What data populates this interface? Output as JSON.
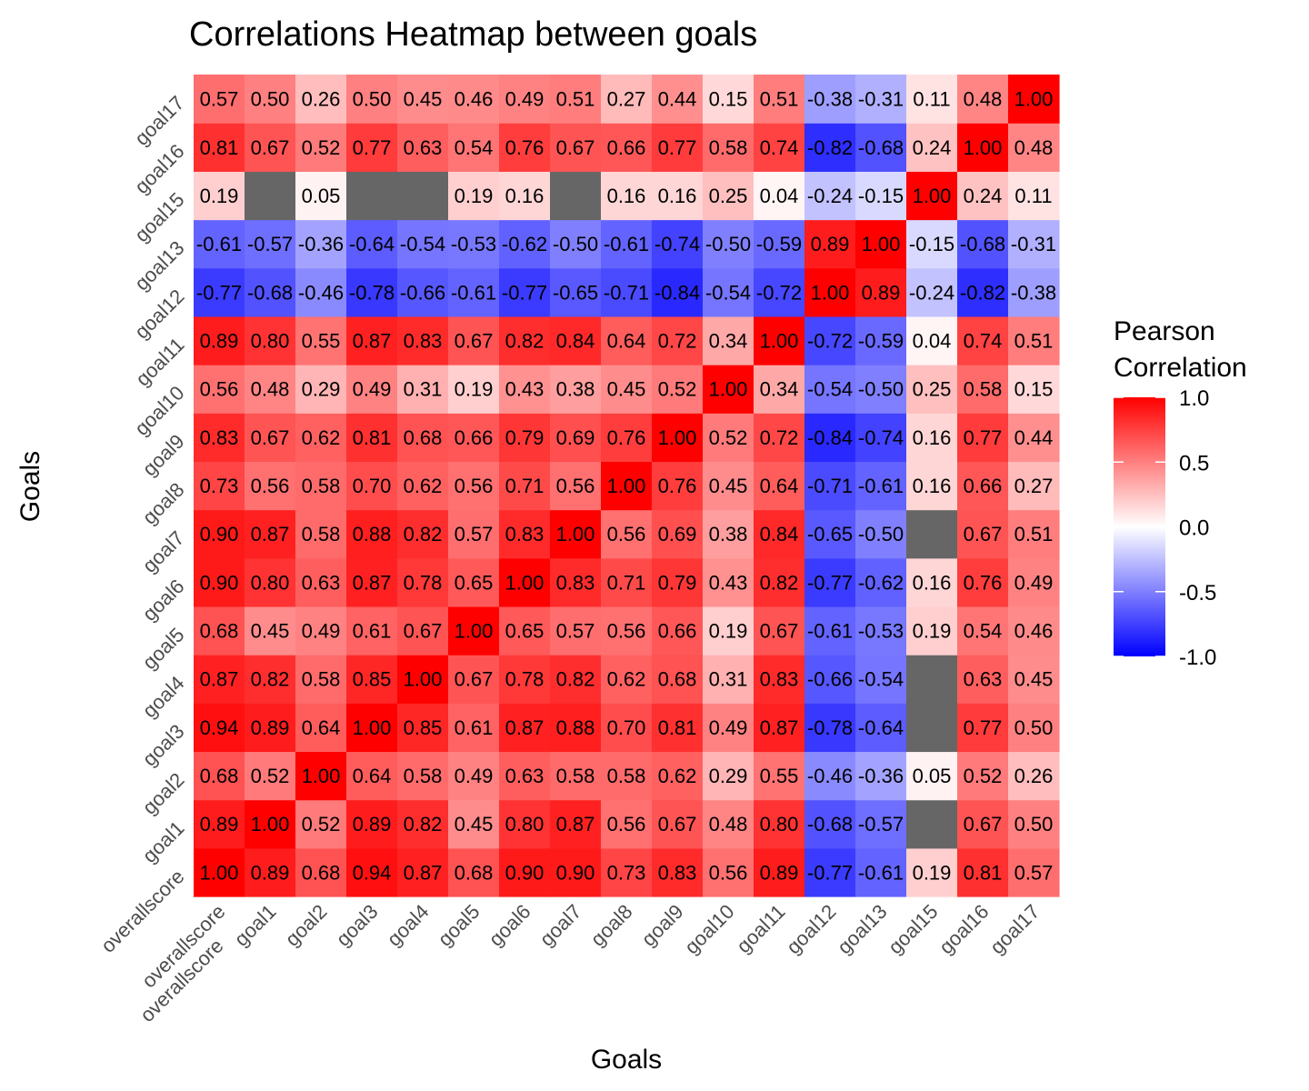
{
  "chart_data": {
    "type": "heatmap",
    "title": "Correlations Heatmap between goals",
    "xlabel": "Goals",
    "ylabel": "Goals",
    "legend": {
      "title_lines": [
        "Pearson",
        "Correlation"
      ],
      "ticks": [
        "1.0",
        "0.5",
        "0.0",
        "-0.5",
        "-1.0"
      ],
      "tick_values": [
        1.0,
        0.5,
        0.0,
        -0.5,
        -1.0
      ],
      "range": [
        -1,
        1
      ],
      "placement": "right"
    },
    "colors": {
      "low": "#0000ff",
      "mid": "#ffffff",
      "high": "#ff0000",
      "na": "#666666"
    },
    "categories": [
      "overallscore",
      "goal1",
      "goal2",
      "goal3",
      "goal4",
      "goal5",
      "goal6",
      "goal7",
      "goal8",
      "goal9",
      "goal10",
      "goal11",
      "goal12",
      "goal13",
      "goal15",
      "goal16",
      "goal17"
    ],
    "x_tick_labels": [
      "overallscore\noverallscore",
      "goal1",
      "goal2",
      "goal3",
      "goal4",
      "goal5",
      "goal6",
      "goal7",
      "goal8",
      "goal9",
      "goal10",
      "goal11",
      "goal12",
      "goal13",
      "goal15",
      "goal16",
      "goal17"
    ],
    "matrix": [
      [
        1.0,
        0.89,
        0.68,
        0.94,
        0.87,
        0.68,
        0.9,
        0.9,
        0.73,
        0.83,
        0.56,
        0.89,
        -0.77,
        -0.61,
        0.19,
        0.81,
        0.57
      ],
      [
        0.89,
        1.0,
        0.52,
        0.89,
        0.82,
        0.45,
        0.8,
        0.87,
        0.56,
        0.67,
        0.48,
        0.8,
        -0.68,
        -0.57,
        null,
        0.67,
        0.5
      ],
      [
        0.68,
        0.52,
        1.0,
        0.64,
        0.58,
        0.49,
        0.63,
        0.58,
        0.58,
        0.62,
        0.29,
        0.55,
        -0.46,
        -0.36,
        0.05,
        0.52,
        0.26
      ],
      [
        0.94,
        0.89,
        0.64,
        1.0,
        0.85,
        0.61,
        0.87,
        0.88,
        0.7,
        0.81,
        0.49,
        0.87,
        -0.78,
        -0.64,
        null,
        0.77,
        0.5
      ],
      [
        0.87,
        0.82,
        0.58,
        0.85,
        1.0,
        0.67,
        0.78,
        0.82,
        0.62,
        0.68,
        0.31,
        0.83,
        -0.66,
        -0.54,
        null,
        0.63,
        0.45
      ],
      [
        0.68,
        0.45,
        0.49,
        0.61,
        0.67,
        1.0,
        0.65,
        0.57,
        0.56,
        0.66,
        0.19,
        0.67,
        -0.61,
        -0.53,
        0.19,
        0.54,
        0.46
      ],
      [
        0.9,
        0.8,
        0.63,
        0.87,
        0.78,
        0.65,
        1.0,
        0.83,
        0.71,
        0.79,
        0.43,
        0.82,
        -0.77,
        -0.62,
        0.16,
        0.76,
        0.49
      ],
      [
        0.9,
        0.87,
        0.58,
        0.88,
        0.82,
        0.57,
        0.83,
        1.0,
        0.56,
        0.69,
        0.38,
        0.84,
        -0.65,
        -0.5,
        null,
        0.67,
        0.51
      ],
      [
        0.73,
        0.56,
        0.58,
        0.7,
        0.62,
        0.56,
        0.71,
        0.56,
        1.0,
        0.76,
        0.45,
        0.64,
        -0.71,
        -0.61,
        0.16,
        0.66,
        0.27
      ],
      [
        0.83,
        0.67,
        0.62,
        0.81,
        0.68,
        0.66,
        0.79,
        0.69,
        0.76,
        1.0,
        0.52,
        0.72,
        -0.84,
        -0.74,
        0.16,
        0.77,
        0.44
      ],
      [
        0.56,
        0.48,
        0.29,
        0.49,
        0.31,
        0.19,
        0.43,
        0.38,
        0.45,
        0.52,
        1.0,
        0.34,
        -0.54,
        -0.5,
        0.25,
        0.58,
        0.15
      ],
      [
        0.89,
        0.8,
        0.55,
        0.87,
        0.83,
        0.67,
        0.82,
        0.84,
        0.64,
        0.72,
        0.34,
        1.0,
        -0.72,
        -0.59,
        0.04,
        0.74,
        0.51
      ],
      [
        -0.77,
        -0.68,
        -0.46,
        -0.78,
        -0.66,
        -0.61,
        -0.77,
        -0.65,
        -0.71,
        -0.84,
        -0.54,
        -0.72,
        1.0,
        0.89,
        -0.24,
        -0.82,
        -0.38
      ],
      [
        -0.61,
        -0.57,
        -0.36,
        -0.64,
        -0.54,
        -0.53,
        -0.62,
        -0.5,
        -0.61,
        -0.74,
        -0.5,
        -0.59,
        0.89,
        1.0,
        -0.15,
        -0.68,
        -0.31
      ],
      [
        0.19,
        null,
        0.05,
        null,
        null,
        0.19,
        0.16,
        null,
        0.16,
        0.16,
        0.25,
        0.04,
        -0.24,
        -0.15,
        1.0,
        0.24,
        0.11
      ],
      [
        0.81,
        0.67,
        0.52,
        0.77,
        0.63,
        0.54,
        0.76,
        0.67,
        0.66,
        0.77,
        0.58,
        0.74,
        -0.82,
        -0.68,
        0.24,
        1.0,
        0.48
      ],
      [
        0.57,
        0.5,
        0.26,
        0.5,
        0.45,
        0.46,
        0.49,
        0.51,
        0.27,
        0.44,
        0.15,
        0.51,
        -0.38,
        -0.31,
        0.11,
        0.48,
        1.0
      ]
    ]
  }
}
